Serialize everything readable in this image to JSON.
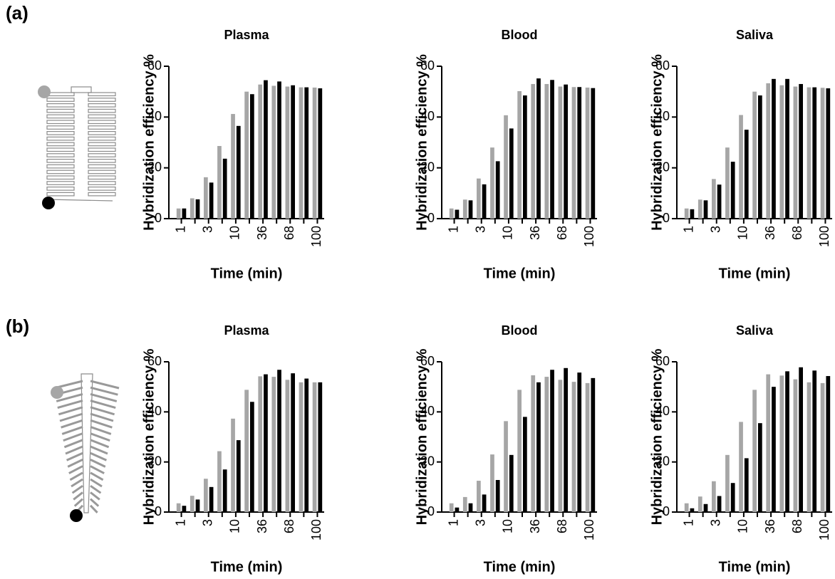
{
  "panel_labels": [
    "(a)",
    "(b)"
  ],
  "chart_data": [
    {
      "type": "bar",
      "title": "Plasma",
      "xlabel": "Time (min)",
      "ylabel": "Hybridization efficiency %",
      "categories": [
        "1",
        null,
        "3",
        null,
        "10",
        null,
        "36",
        null,
        "68",
        null,
        "100"
      ],
      "series": [
        {
          "color": "#a6a6a6",
          "values": [
            4,
            8,
            16.3,
            28.6,
            41.2,
            50,
            52.8,
            52.3,
            52,
            51.7,
            51.6
          ]
        },
        {
          "color": "#000000",
          "values": [
            4,
            7.6,
            14.2,
            23.6,
            36.5,
            49,
            54.5,
            54,
            52.5,
            51.7,
            51.3
          ]
        }
      ],
      "ylim": [
        0,
        60
      ],
      "yticks": [
        0,
        20,
        40,
        60
      ]
    },
    {
      "type": "bar",
      "title": "Blood",
      "xlabel": "Time (min)",
      "ylabel": "Hybridization efficiency %",
      "categories": [
        "1",
        null,
        "3",
        null,
        "10",
        null,
        "36",
        null,
        "68",
        null,
        "100"
      ],
      "series": [
        {
          "color": "#a6a6a6",
          "values": [
            4,
            7.5,
            15.8,
            28,
            40.7,
            50.2,
            53,
            53,
            52,
            51.8,
            51.6
          ]
        },
        {
          "color": "#000000",
          "values": [
            3.5,
            7.2,
            13.5,
            22.6,
            35.5,
            48.5,
            55.2,
            54.6,
            52.8,
            51.8,
            51.4
          ]
        }
      ],
      "ylim": [
        0,
        60
      ],
      "yticks": [
        0,
        20,
        40,
        60
      ]
    },
    {
      "type": "bar",
      "title": "Saliva",
      "xlabel": "Time (min)",
      "ylabel": "Hybridization efficiency %",
      "categories": [
        "1",
        null,
        "3",
        null,
        "10",
        null,
        "36",
        null,
        "68",
        null,
        "100"
      ],
      "series": [
        {
          "color": "#a6a6a6",
          "values": [
            4,
            7.5,
            15.6,
            28,
            40.8,
            50,
            53.3,
            52.5,
            52,
            51.7,
            51.5
          ]
        },
        {
          "color": "#000000",
          "values": [
            3.7,
            7.2,
            13.4,
            22.4,
            35,
            48.5,
            55,
            55,
            53,
            51.7,
            51.3
          ]
        }
      ],
      "ylim": [
        0,
        60
      ],
      "yticks": [
        0,
        20,
        40,
        60
      ]
    },
    {
      "type": "bar",
      "title": "Plasma",
      "xlabel": "Time (min)",
      "ylabel": "Hybridization efficiency %",
      "categories": [
        "1",
        null,
        "3",
        null,
        "10",
        null,
        "36",
        null,
        "68",
        null,
        "100"
      ],
      "series": [
        {
          "color": "#a6a6a6",
          "values": [
            3.5,
            6.5,
            13.3,
            24.3,
            37.3,
            48.8,
            54.2,
            54,
            52.8,
            51.8,
            51.8
          ]
        },
        {
          "color": "#000000",
          "values": [
            2.5,
            5,
            10,
            17,
            28.7,
            44,
            55,
            56.8,
            55.4,
            53.3,
            51.8
          ]
        }
      ],
      "ylim": [
        0,
        60
      ],
      "yticks": [
        0,
        20,
        40,
        60
      ]
    },
    {
      "type": "bar",
      "title": "Blood",
      "xlabel": "Time (min)",
      "ylabel": "Hybridization efficiency %",
      "categories": [
        "1",
        null,
        "3",
        null,
        "10",
        null,
        "36",
        null,
        "68",
        null,
        "100"
      ],
      "series": [
        {
          "color": "#a6a6a6",
          "values": [
            3.5,
            6,
            12.5,
            23,
            36.3,
            48.8,
            54.6,
            54,
            52.8,
            52,
            51.5
          ]
        },
        {
          "color": "#000000",
          "values": [
            1.8,
            3.5,
            7,
            12.8,
            22.8,
            38,
            51.8,
            56.8,
            57.5,
            55.7,
            53.5
          ]
        }
      ],
      "ylim": [
        0,
        60
      ],
      "yticks": [
        0,
        20,
        40,
        60
      ]
    },
    {
      "type": "bar",
      "title": "Saliva",
      "xlabel": "Time (min)",
      "ylabel": "Hybridization efficiency %",
      "categories": [
        "1",
        null,
        "3",
        null,
        "10",
        null,
        "36",
        null,
        "68",
        null,
        "100"
      ],
      "series": [
        {
          "color": "#a6a6a6",
          "values": [
            3.5,
            6.2,
            12.3,
            22.8,
            36,
            48.8,
            55,
            54.5,
            53,
            51.8,
            51.5
          ]
        },
        {
          "color": "#000000",
          "values": [
            1.5,
            3.2,
            6.4,
            11.6,
            21.5,
            35.5,
            50,
            56.2,
            57.8,
            56.5,
            54.3
          ]
        }
      ],
      "ylim": [
        0,
        60
      ],
      "yticks": [
        0,
        20,
        40,
        60
      ]
    }
  ]
}
